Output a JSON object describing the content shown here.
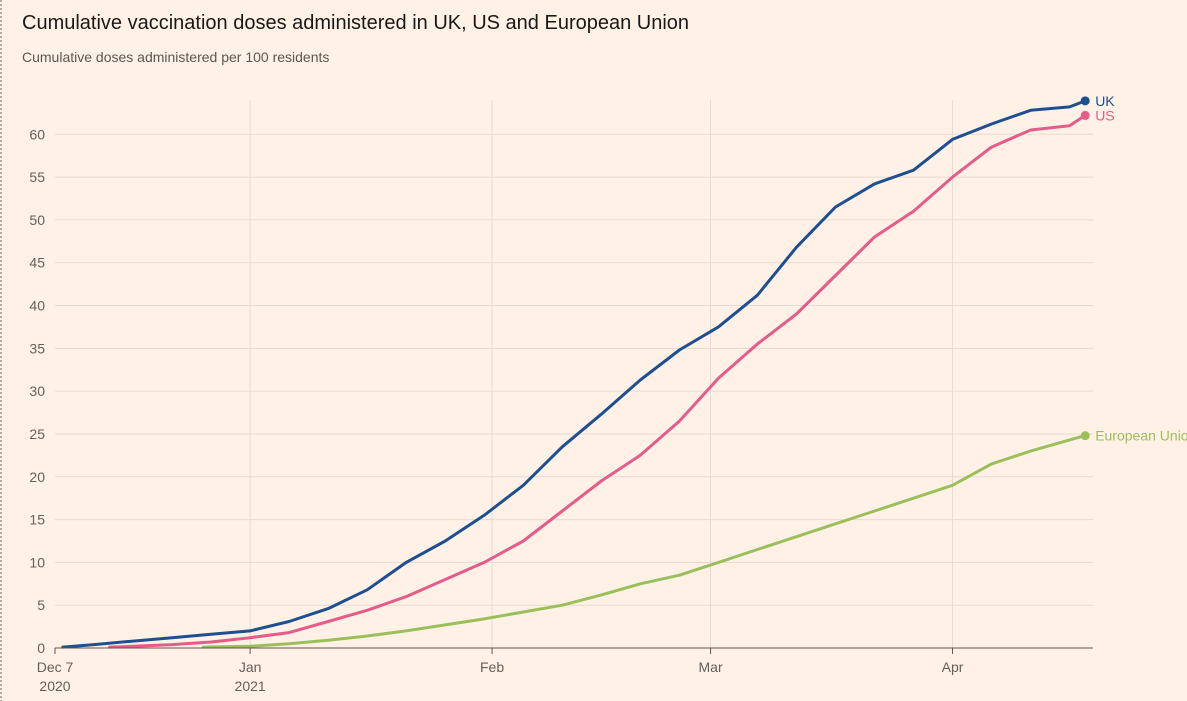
{
  "title": "Cumulative vaccination doses administered in UK, US and European Union",
  "subtitle": "Cumulative doses administered per 100 residents",
  "colors": {
    "background": "#fff1e5",
    "grid": "#e7dbd1",
    "axis": "#5e5650",
    "tick_text": "#66605a",
    "UK": "#1d4f91",
    "US": "#e55c8a",
    "European Union": "#9bbf5a"
  },
  "chart_data": {
    "type": "line",
    "title": "Cumulative vaccination doses administered in UK, US and European Union",
    "subtitle": "Cumulative doses administered per 100 residents",
    "xlabel": "",
    "ylabel": "",
    "x_unit": "days from Dec 7, 2020",
    "xlim": [
      0,
      133
    ],
    "ylim": [
      0,
      64
    ],
    "y_ticks": [
      0,
      5,
      10,
      15,
      20,
      25,
      30,
      35,
      40,
      45,
      50,
      55,
      60
    ],
    "x_ticks": [
      {
        "x": 0,
        "label": "Dec 7",
        "sublabel": "2020"
      },
      {
        "x": 25,
        "label": "Jan",
        "sublabel": "2021"
      },
      {
        "x": 56,
        "label": "Feb",
        "sublabel": ""
      },
      {
        "x": 84,
        "label": "Mar",
        "sublabel": ""
      },
      {
        "x": 115,
        "label": "Apr",
        "sublabel": ""
      }
    ],
    "grid": true,
    "legend": "labels at line ends (right)",
    "series": [
      {
        "name": "UK",
        "x": [
          1,
          5,
          10,
          15,
          20,
          25,
          30,
          35,
          40,
          45,
          50,
          55,
          60,
          65,
          70,
          75,
          80,
          85,
          90,
          95,
          100,
          105,
          110,
          115,
          120,
          125,
          130,
          132
        ],
        "values": [
          0.1,
          0.4,
          0.8,
          1.2,
          1.6,
          2.0,
          3.1,
          4.6,
          6.8,
          10.0,
          12.5,
          15.5,
          19.0,
          23.5,
          27.3,
          31.3,
          34.8,
          37.5,
          41.2,
          46.8,
          51.5,
          54.2,
          55.8,
          59.4,
          61.2,
          62.8,
          63.2,
          63.9
        ]
      },
      {
        "name": "US",
        "x": [
          7,
          10,
          15,
          20,
          25,
          30,
          35,
          40,
          45,
          50,
          55,
          60,
          65,
          70,
          75,
          80,
          85,
          90,
          95,
          100,
          105,
          110,
          115,
          120,
          125,
          130,
          132
        ],
        "values": [
          0.1,
          0.2,
          0.4,
          0.7,
          1.2,
          1.8,
          3.1,
          4.4,
          6.0,
          8.0,
          10.0,
          12.5,
          16.0,
          19.5,
          22.5,
          26.5,
          31.5,
          35.5,
          39.0,
          43.5,
          48.0,
          51.0,
          55.0,
          58.5,
          60.5,
          61.0,
          62.2
        ]
      },
      {
        "name": "European Union",
        "x": [
          19,
          25,
          30,
          35,
          40,
          45,
          50,
          55,
          60,
          65,
          70,
          75,
          80,
          85,
          90,
          95,
          100,
          105,
          110,
          115,
          120,
          125,
          130,
          132
        ],
        "values": [
          0.1,
          0.2,
          0.5,
          0.9,
          1.4,
          2.0,
          2.7,
          3.4,
          4.2,
          5.0,
          6.2,
          7.5,
          8.5,
          10.0,
          11.5,
          13.0,
          14.5,
          16.0,
          17.5,
          19.0,
          21.5,
          23.0,
          24.3,
          24.8
        ]
      }
    ]
  }
}
